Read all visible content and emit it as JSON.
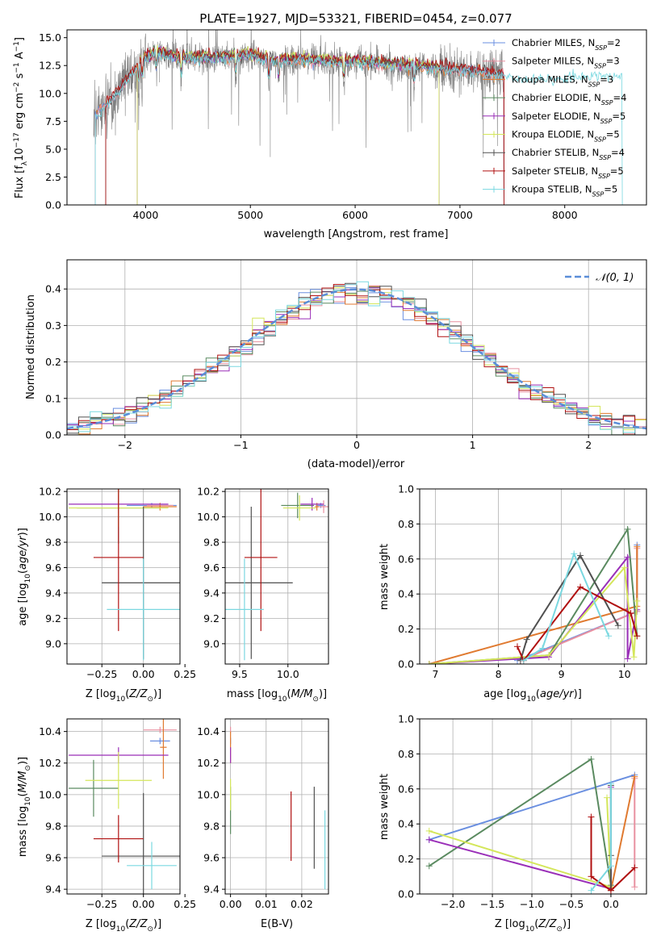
{
  "figure": {
    "title": "PLATE=1927, MJD=53321, FIBERID=0454, z=0.077"
  },
  "palette": {
    "chabrier_miles": "#6a8fe0",
    "salpeter_miles": "#e890a0",
    "kroupa_miles": "#e07a30",
    "chabrier_elodie": "#5a8a60",
    "salpeter_elodie": "#9a2fb8",
    "kroupa_elodie": "#d4e65a",
    "chabrier_stelib": "#505050",
    "salpeter_stelib": "#b01010",
    "kroupa_stelib": "#7ad8e0",
    "data": "#808080",
    "normal": "#5b8ed8",
    "grid": "#b0b0b0"
  },
  "chart_data": [
    {
      "id": "spectrum",
      "type": "line",
      "xlabel": "wavelength [Angstrom, rest frame]",
      "ylabel": "Flux [f",
      "ylabel_sub": "λ",
      "ylabel_mid": "10",
      "ylabel_sup": "−17",
      "ylabel_rest": " erg cm",
      "ylabel_sup2": "−2",
      "ylabel_rest2": " s",
      "ylabel_sup3": "−1",
      "ylabel_rest3": " A",
      "ylabel_sup4": "−1",
      "ylabel_end": "]",
      "xlim": [
        3250,
        8780
      ],
      "ylim": [
        0,
        15.7
      ],
      "xticks": [
        4000,
        5000,
        6000,
        7000,
        8000
      ],
      "yticks": [
        0.0,
        2.5,
        5.0,
        7.5,
        10.0,
        12.5,
        15.0
      ],
      "continuum": {
        "x": [
          3500,
          3600,
          3700,
          3800,
          3900,
          4000,
          4100,
          4300,
          4500,
          4700,
          5000,
          5200,
          5500,
          5800,
          6000,
          6300,
          6600,
          6800,
          7000,
          7200,
          7400,
          7600,
          7800,
          8000,
          8200,
          8400,
          8500
        ],
        "y": [
          8.0,
          8.8,
          9.6,
          11.0,
          12.0,
          13.2,
          13.6,
          13.2,
          13.1,
          13.2,
          13.4,
          12.9,
          13.0,
          12.8,
          12.8,
          12.6,
          12.4,
          12.2,
          12.1,
          11.9,
          11.6,
          11.3,
          11.3,
          11.5,
          11.7,
          11.6,
          11.6
        ]
      },
      "legend": [
        {
          "name": "Chabrier MILES, N",
          "sub": "SSP",
          "val": "=2"
        },
        {
          "name": "Salpeter MILES, N",
          "sub": "SSP",
          "val": "=3"
        },
        {
          "name": "Kroupa MILES, N",
          "sub": "SSP",
          "val": "=3"
        },
        {
          "name": "Chabrier ELODIE, N",
          "sub": "SSP",
          "val": "=4"
        },
        {
          "name": "Salpeter ELODIE, N",
          "sub": "SSP",
          "val": "=5"
        },
        {
          "name": "Kroupa ELODIE, N",
          "sub": "SSP",
          "val": "=5"
        },
        {
          "name": "Chabrier STELIB, N",
          "sub": "SSP",
          "val": "=4"
        },
        {
          "name": "Salpeter STELIB, N",
          "sub": "SSP",
          "val": "=5"
        },
        {
          "name": "Kroupa STELIB, N",
          "sub": "SSP",
          "val": "=5"
        }
      ]
    },
    {
      "id": "residuals",
      "type": "histogram",
      "xlabel": "(data-model)/error",
      "ylabel": "Normed distribution",
      "xlim": [
        -2.5,
        2.5
      ],
      "ylim": [
        0,
        0.48
      ],
      "xticks": [
        -2,
        -1,
        0,
        1,
        2
      ],
      "yticks": [
        0.0,
        0.1,
        0.2,
        0.3,
        0.4
      ],
      "legend": "𝒩(0, 1)",
      "bin_width": 0.1,
      "grid": true
    },
    {
      "id": "age_vs_Z",
      "type": "errorbar",
      "xlabel": "Z [log",
      "xlabel_sub": "10",
      "xlabel_rest": "(Z/Z",
      "xlabel_sun": "⊙",
      "xlabel_end": ")]",
      "ylabel": "age  [log",
      "ylabel_sub": "10",
      "ylabel_rest": "(age/yr)]",
      "xlim": [
        -0.46,
        0.22
      ],
      "ylim": [
        8.84,
        10.22
      ],
      "xticks": [
        -0.25,
        0.0,
        0.25
      ],
      "xticklabels": [
        "−0.25",
        "0.00",
        "0.25"
      ],
      "yticks": [
        9.0,
        9.2,
        9.4,
        9.6,
        9.8,
        10.0,
        10.2
      ],
      "points": [
        {
          "s": "chabrier_miles",
          "x": 0.05,
          "y": 10.09,
          "xe": 0.15,
          "ye": 0.02
        },
        {
          "s": "salpeter_miles",
          "x": 0.1,
          "y": 10.09,
          "xe": 0.08,
          "ye": 0.02
        },
        {
          "s": "kroupa_miles",
          "x": 0.1,
          "y": 10.08,
          "xe": 0.1,
          "ye": 0.03
        },
        {
          "s": "chabrier_elodie",
          "x": -0.15,
          "y": 10.07,
          "xe": 0.25,
          "ye": 0.28
        },
        {
          "s": "salpeter_elodie",
          "x": -0.15,
          "y": 10.1,
          "xe": 0.3,
          "ye": 0.07
        },
        {
          "s": "kroupa_elodie",
          "x": -0.15,
          "y": 10.07,
          "xe": 0.3,
          "ye": 0.15
        },
        {
          "s": "chabrier_stelib",
          "x": 0.0,
          "y": 9.48,
          "xe": 0.25,
          "ye": 0.6
        },
        {
          "s": "salpeter_stelib",
          "x": -0.15,
          "y": 9.68,
          "xe": 0.15,
          "ye": 0.58
        },
        {
          "s": "kroupa_stelib",
          "x": 0.0,
          "y": 9.27,
          "xe": 0.22,
          "ye": 0.4
        }
      ]
    },
    {
      "id": "age_vs_mass",
      "type": "errorbar",
      "xlabel": "mass [log",
      "xlabel_sub": "10",
      "xlabel_rest": "(M/M",
      "xlabel_sun": "⊙",
      "xlabel_end": ")]",
      "xlim": [
        9.35,
        10.42
      ],
      "ylim": [
        8.84,
        10.22
      ],
      "xticks": [
        9.5,
        10.0
      ],
      "xticklabels": [
        "9.5",
        "10.0"
      ],
      "yticks": [
        9.0,
        9.2,
        9.4,
        9.6,
        9.8,
        10.0,
        10.2
      ],
      "points": [
        {
          "s": "chabrier_miles",
          "x": 10.34,
          "y": 10.09,
          "xe": 0.05,
          "ye": 0.02
        },
        {
          "s": "salpeter_miles",
          "x": 10.37,
          "y": 10.08,
          "xe": 0.05,
          "ye": 0.05
        },
        {
          "s": "kroupa_miles",
          "x": 10.3,
          "y": 10.08,
          "xe": 0.02,
          "ye": 0.03
        },
        {
          "s": "chabrier_elodie",
          "x": 10.1,
          "y": 10.09,
          "xe": 0.17,
          "ye": 0.1
        },
        {
          "s": "salpeter_elodie",
          "x": 10.25,
          "y": 10.1,
          "xe": 0.12,
          "ye": 0.05
        },
        {
          "s": "kroupa_elodie",
          "x": 10.12,
          "y": 10.07,
          "xe": 0.17,
          "ye": 0.1
        },
        {
          "s": "chabrier_stelib",
          "x": 9.62,
          "y": 9.48,
          "xe": 0.43,
          "ye": 0.6
        },
        {
          "s": "salpeter_stelib",
          "x": 9.72,
          "y": 9.68,
          "xe": 0.17,
          "ye": 0.58
        },
        {
          "s": "kroupa_stelib",
          "x": 9.55,
          "y": 9.27,
          "xe": 0.2,
          "ye": 0.4
        }
      ]
    },
    {
      "id": "weight_vs_age",
      "type": "line",
      "xlabel": "age  [log",
      "xlabel_sub": "10",
      "xlabel_rest": "(age/yr)]",
      "ylabel": "mass weight",
      "xlim": [
        6.75,
        10.35
      ],
      "ylim": [
        0,
        1.0
      ],
      "xticks": [
        7,
        8,
        9,
        10
      ],
      "yticks": [
        0.0,
        0.2,
        0.4,
        0.6,
        0.8,
        1.0
      ],
      "series": [
        {
          "s": "chabrier_miles",
          "x": [
            8.3,
            10.2,
            10.2
          ],
          "y": [
            0.02,
            0.3,
            0.68
          ]
        },
        {
          "s": "salpeter_miles",
          "x": [
            8.35,
            10.2,
            10.2
          ],
          "y": [
            0.02,
            0.3,
            0.66
          ]
        },
        {
          "s": "kroupa_miles",
          "x": [
            6.9,
            10.2,
            10.2
          ],
          "y": [
            0.0,
            0.33,
            0.67
          ]
        },
        {
          "s": "chabrier_elodie",
          "x": [
            6.9,
            8.8,
            10.05,
            10.2
          ],
          "y": [
            0.0,
            0.05,
            0.77,
            0.16
          ]
        },
        {
          "s": "salpeter_elodie",
          "x": [
            6.9,
            8.8,
            10.05,
            10.05,
            10.2
          ],
          "y": [
            0.0,
            0.04,
            0.61,
            0.03,
            0.31
          ]
        },
        {
          "s": "kroupa_elodie",
          "x": [
            6.9,
            8.8,
            10.0,
            10.15,
            10.2
          ],
          "y": [
            0.0,
            0.05,
            0.55,
            0.04,
            0.36
          ]
        },
        {
          "s": "chabrier_stelib",
          "x": [
            8.35,
            8.45,
            9.3,
            9.9
          ],
          "y": [
            0.02,
            0.14,
            0.62,
            0.22
          ]
        },
        {
          "s": "salpeter_stelib",
          "x": [
            8.3,
            8.4,
            9.3,
            10.1,
            10.2
          ],
          "y": [
            0.1,
            0.02,
            0.44,
            0.29,
            0.16
          ]
        },
        {
          "s": "kroupa_stelib",
          "x": [
            8.4,
            8.7,
            9.2,
            9.75
          ],
          "y": [
            0.02,
            0.09,
            0.63,
            0.16
          ]
        }
      ]
    },
    {
      "id": "mass_vs_Z",
      "type": "errorbar",
      "xlabel": "Z [log",
      "xlabel_sub": "10",
      "xlabel_rest": "(Z/Z",
      "xlabel_sun": "⊙",
      "xlabel_end": ")]",
      "ylabel": "mass [log",
      "ylabel_sub": "10",
      "ylabel_rest": "(M/M",
      "ylabel_sun": "⊙",
      "ylabel_end": ")]",
      "xlim": [
        -0.46,
        0.22
      ],
      "ylim": [
        9.37,
        10.48
      ],
      "xticks": [
        -0.25,
        0.0,
        0.25
      ],
      "xticklabels": [
        "−0.25",
        "0.00",
        "0.25"
      ],
      "yticks": [
        9.4,
        9.6,
        9.8,
        10.0,
        10.2,
        10.4
      ],
      "points": [
        {
          "s": "chabrier_miles",
          "x": 0.1,
          "y": 10.34,
          "xe": 0.06,
          "ye": 0.02
        },
        {
          "s": "salpeter_miles",
          "x": 0.1,
          "y": 10.41,
          "xe": 0.1,
          "ye": 0.02
        },
        {
          "s": "kroupa_miles",
          "x": 0.12,
          "y": 10.3,
          "xe": 0.02,
          "ye": 0.2
        },
        {
          "s": "chabrier_elodie",
          "x": -0.3,
          "y": 10.04,
          "xe": 0.15,
          "ye": 0.18
        },
        {
          "s": "salpeter_elodie",
          "x": -0.15,
          "y": 10.25,
          "xe": 0.3,
          "ye": 0.05
        },
        {
          "s": "kroupa_elodie",
          "x": -0.15,
          "y": 10.09,
          "xe": 0.2,
          "ye": 0.18
        },
        {
          "s": "chabrier_stelib",
          "x": 0.0,
          "y": 9.61,
          "xe": 0.25,
          "ye": 0.4
        },
        {
          "s": "salpeter_stelib",
          "x": -0.15,
          "y": 9.72,
          "xe": 0.15,
          "ye": 0.15
        },
        {
          "s": "kroupa_stelib",
          "x": 0.05,
          "y": 9.55,
          "xe": 0.15,
          "ye": 0.15
        }
      ]
    },
    {
      "id": "mass_vs_ebv",
      "type": "errorbar",
      "xlabel": "E(B-V)",
      "xlim": [
        -0.0015,
        0.0275
      ],
      "ylim": [
        9.37,
        10.48
      ],
      "xticks": [
        0.0,
        0.01,
        0.02
      ],
      "xticklabels": [
        "0.00",
        "0.01",
        "0.02"
      ],
      "yticks": [
        9.4,
        9.6,
        9.8,
        10.0,
        10.2,
        10.4
      ],
      "points": [
        {
          "s": "chabrier_miles",
          "x": 0.0,
          "y": 10.34,
          "xe": 0,
          "ye": 0.02
        },
        {
          "s": "salpeter_miles",
          "x": 0.0,
          "y": 10.41,
          "xe": 0,
          "ye": 0.02
        },
        {
          "s": "kroupa_miles",
          "x": 0.0,
          "y": 10.3,
          "xe": 0,
          "ye": 0.1
        },
        {
          "s": "chabrier_elodie",
          "x": 0.0,
          "y": 9.9,
          "xe": 0,
          "ye": 0.15
        },
        {
          "s": "salpeter_elodie",
          "x": 0.0,
          "y": 10.25,
          "xe": 0,
          "ye": 0.05
        },
        {
          "s": "kroupa_elodie",
          "x": 0.0,
          "y": 10.0,
          "xe": 0,
          "ye": 0.1
        },
        {
          "s": "chabrier_stelib",
          "x": 0.0235,
          "y": 9.79,
          "xe": 0,
          "ye": 0.26
        },
        {
          "s": "salpeter_stelib",
          "x": 0.017,
          "y": 9.8,
          "xe": 0,
          "ye": 0.22
        },
        {
          "s": "kroupa_stelib",
          "x": 0.0265,
          "y": 9.65,
          "xe": 0,
          "ye": 0.25
        }
      ]
    },
    {
      "id": "weight_vs_Z",
      "type": "line",
      "xlabel": "Z [log",
      "xlabel_sub": "10",
      "xlabel_rest": "(Z/Z",
      "xlabel_sun": "⊙",
      "xlabel_end": ")]",
      "ylabel": "mass weight",
      "xlim": [
        -2.42,
        0.45
      ],
      "ylim": [
        0,
        1.0
      ],
      "xticks": [
        -2.0,
        -1.5,
        -1.0,
        -0.5,
        0.0
      ],
      "xticklabels": [
        "−2.0",
        "−1.5",
        "−1.0",
        "−0.5",
        "0.0"
      ],
      "yticks": [
        0.0,
        0.2,
        0.4,
        0.6,
        0.8,
        1.0
      ],
      "series": [
        {
          "s": "chabrier_miles",
          "x": [
            -2.3,
            0.3
          ],
          "y": [
            0.31,
            0.68
          ]
        },
        {
          "s": "salpeter_miles",
          "x": [
            0.3,
            0.3
          ],
          "y": [
            0.04,
            0.66
          ]
        },
        {
          "s": "kroupa_miles",
          "x": [
            0.0,
            0.3
          ],
          "y": [
            0.02,
            0.67
          ]
        },
        {
          "s": "chabrier_elodie",
          "x": [
            -2.3,
            -0.25,
            0.0
          ],
          "y": [
            0.16,
            0.77,
            0.05
          ]
        },
        {
          "s": "salpeter_elodie",
          "x": [
            -2.3,
            0.0,
            0.0
          ],
          "y": [
            0.31,
            0.03,
            0.61
          ]
        },
        {
          "s": "kroupa_elodie",
          "x": [
            -2.3,
            0.0,
            -0.05
          ],
          "y": [
            0.36,
            0.04,
            0.55
          ]
        },
        {
          "s": "chabrier_stelib",
          "x": [
            0.0,
            0.0,
            0.0
          ],
          "y": [
            0.02,
            0.22,
            0.62
          ]
        },
        {
          "s": "salpeter_stelib",
          "x": [
            -0.25,
            -0.25,
            0.0,
            0.3
          ],
          "y": [
            0.44,
            0.1,
            0.02,
            0.15
          ]
        },
        {
          "s": "kroupa_stelib",
          "x": [
            -0.25,
            0.0,
            0.0
          ],
          "y": [
            0.02,
            0.16,
            0.63
          ]
        }
      ]
    }
  ]
}
